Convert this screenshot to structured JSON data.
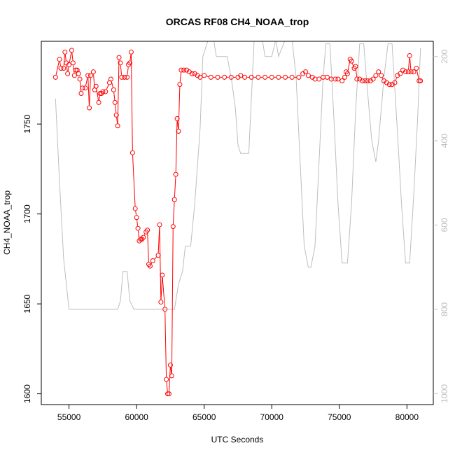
{
  "chart_data": {
    "type": "line",
    "title": "ORCAS RF08 CH4_NOAA_trop",
    "xlabel": "UTC Seconds",
    "ylabel": "CH4_NOAA_trop",
    "xlim": [
      52950,
      81950
    ],
    "ylim": [
      1594,
      1796
    ],
    "x_ticks": [
      55000,
      60000,
      65000,
      70000,
      75000,
      80000
    ],
    "y_ticks": [
      1600,
      1650,
      1700,
      1750
    ],
    "y2_ticks": [
      200,
      400,
      600,
      800,
      1000
    ],
    "y2lim": [
      1026,
      164
    ],
    "colors": {
      "ch4": "#ff0000",
      "pressure": "#bebebe",
      "frame": "#000000"
    },
    "series": [
      {
        "points": [
          [
            54000,
            1776
          ],
          [
            54300,
            1786
          ],
          [
            54400,
            1781
          ],
          [
            54600,
            1781
          ],
          [
            54700,
            1790
          ],
          [
            54800,
            1784
          ],
          [
            54900,
            1778
          ],
          [
            55000,
            1783
          ],
          [
            55200,
            1791
          ],
          [
            55300,
            1784
          ],
          [
            55400,
            1777
          ],
          [
            55500,
            1780
          ],
          [
            55600,
            1780
          ],
          [
            55700,
            1778
          ],
          [
            55800,
            1775
          ],
          [
            55900,
            1767
          ],
          [
            56000,
            1770
          ],
          [
            56200,
            1770
          ],
          [
            56400,
            1777
          ],
          [
            56500,
            1759
          ],
          [
            56600,
            1777
          ],
          [
            56800,
            1779
          ],
          [
            56900,
            1769
          ],
          [
            57000,
            1771
          ],
          [
            57200,
            1762
          ],
          [
            57300,
            1767
          ],
          [
            57400,
            1767
          ],
          [
            57500,
            1768
          ],
          [
            57700,
            1768
          ],
          [
            58000,
            1773
          ],
          [
            58100,
            1775
          ],
          [
            58300,
            1769
          ],
          [
            58400,
            1762
          ],
          [
            58500,
            1755
          ],
          [
            58600,
            1749
          ],
          [
            58700,
            1787
          ],
          [
            58800,
            1784
          ],
          [
            58900,
            1776
          ],
          [
            59100,
            1776
          ],
          [
            59300,
            1776
          ],
          [
            59400,
            1783
          ],
          [
            59500,
            1784
          ],
          [
            59600,
            1790
          ],
          [
            59700,
            1734
          ],
          [
            59900,
            1703
          ],
          [
            60000,
            1698
          ],
          [
            60100,
            1692
          ],
          [
            60200,
            1685
          ],
          [
            60300,
            1686
          ],
          [
            60400,
            1686
          ],
          [
            60500,
            1687
          ],
          [
            60700,
            1690
          ],
          [
            60800,
            1691
          ],
          [
            60900,
            1672
          ],
          [
            61000,
            1671
          ],
          [
            61200,
            1674
          ],
          [
            61600,
            1677
          ],
          [
            61700,
            1694
          ],
          [
            61800,
            1651
          ],
          [
            61900,
            1666
          ],
          [
            62100,
            1647
          ],
          [
            62200,
            1608
          ],
          [
            62300,
            1600
          ],
          [
            62400,
            1600
          ],
          [
            62500,
            1616
          ],
          [
            62600,
            1610
          ],
          [
            62700,
            1693
          ],
          [
            62800,
            1708
          ],
          [
            62900,
            1722
          ],
          [
            63000,
            1753
          ],
          [
            63100,
            1746
          ],
          [
            63200,
            1772
          ],
          [
            63300,
            1780
          ],
          [
            63500,
            1780
          ],
          [
            63700,
            1780
          ],
          [
            63900,
            1779
          ],
          [
            64100,
            1778
          ],
          [
            64300,
            1778
          ],
          [
            64500,
            1777
          ],
          [
            64700,
            1776
          ],
          [
            65000,
            1777
          ],
          [
            65500,
            1776
          ],
          [
            66000,
            1776
          ],
          [
            66500,
            1776
          ],
          [
            67000,
            1776
          ],
          [
            67500,
            1776
          ],
          [
            67700,
            1777
          ],
          [
            68000,
            1776
          ],
          [
            68500,
            1776
          ],
          [
            69000,
            1776
          ],
          [
            69500,
            1776
          ],
          [
            70000,
            1776
          ],
          [
            70500,
            1776
          ],
          [
            71000,
            1776
          ],
          [
            71500,
            1776
          ],
          [
            72000,
            1776
          ],
          [
            72300,
            1778
          ],
          [
            72500,
            1779
          ],
          [
            72700,
            1777
          ],
          [
            73000,
            1776
          ],
          [
            73200,
            1775
          ],
          [
            73500,
            1775
          ],
          [
            73800,
            1776
          ],
          [
            74100,
            1776
          ],
          [
            74400,
            1775
          ],
          [
            74700,
            1775
          ],
          [
            74900,
            1775
          ],
          [
            75200,
            1774
          ],
          [
            75400,
            1776
          ],
          [
            75500,
            1779
          ],
          [
            75600,
            1778
          ],
          [
            75800,
            1786
          ],
          [
            75900,
            1785
          ],
          [
            76100,
            1781
          ],
          [
            76200,
            1782
          ],
          [
            76300,
            1775
          ],
          [
            76500,
            1775
          ],
          [
            76700,
            1774
          ],
          [
            76900,
            1774
          ],
          [
            77100,
            1774
          ],
          [
            77300,
            1774
          ],
          [
            77500,
            1775
          ],
          [
            77700,
            1777
          ],
          [
            77900,
            1779
          ],
          [
            78100,
            1777
          ],
          [
            78300,
            1774
          ],
          [
            78500,
            1773
          ],
          [
            78700,
            1772
          ],
          [
            78900,
            1772
          ],
          [
            79100,
            1773
          ],
          [
            79300,
            1777
          ],
          [
            79500,
            1778
          ],
          [
            79700,
            1780
          ],
          [
            79900,
            1779
          ],
          [
            80100,
            1779
          ],
          [
            80200,
            1788
          ],
          [
            80300,
            1779
          ],
          [
            80500,
            1779
          ],
          [
            80700,
            1781
          ],
          [
            80900,
            1774
          ],
          [
            81000,
            1774
          ]
        ]
      },
      {
        "points": [
          [
            54000,
            300
          ],
          [
            54300,
            500
          ],
          [
            54600,
            680
          ],
          [
            55000,
            800
          ],
          [
            56000,
            800
          ],
          [
            57000,
            800
          ],
          [
            58000,
            800
          ],
          [
            58600,
            800
          ],
          [
            58800,
            780
          ],
          [
            59000,
            710
          ],
          [
            59300,
            710
          ],
          [
            59500,
            780
          ],
          [
            59800,
            800
          ],
          [
            60500,
            800
          ],
          [
            61500,
            800
          ],
          [
            62300,
            800
          ],
          [
            62800,
            800
          ],
          [
            63100,
            740
          ],
          [
            63400,
            710
          ],
          [
            63600,
            650
          ],
          [
            64000,
            650
          ],
          [
            64300,
            550
          ],
          [
            64700,
            370
          ],
          [
            64900,
            200
          ],
          [
            65300,
            160
          ],
          [
            65700,
            160
          ],
          [
            65900,
            200
          ],
          [
            66300,
            200
          ],
          [
            66700,
            200
          ],
          [
            67000,
            250
          ],
          [
            67300,
            320
          ],
          [
            67500,
            410
          ],
          [
            67700,
            430
          ],
          [
            68300,
            430
          ],
          [
            68700,
            160
          ],
          [
            68900,
            160
          ],
          [
            69300,
            160
          ],
          [
            69500,
            200
          ],
          [
            70000,
            200
          ],
          [
            70300,
            160
          ],
          [
            70500,
            200
          ],
          [
            71000,
            160
          ],
          [
            71500,
            160
          ],
          [
            71800,
            250
          ],
          [
            72100,
            450
          ],
          [
            72400,
            650
          ],
          [
            72700,
            700
          ],
          [
            72900,
            700
          ],
          [
            73200,
            650
          ],
          [
            73500,
            450
          ],
          [
            73800,
            250
          ],
          [
            74000,
            170
          ],
          [
            74300,
            170
          ],
          [
            74600,
            350
          ],
          [
            74900,
            550
          ],
          [
            75200,
            690
          ],
          [
            75600,
            690
          ],
          [
            75900,
            550
          ],
          [
            76200,
            330
          ],
          [
            76500,
            170
          ],
          [
            76800,
            170
          ],
          [
            77000,
            250
          ],
          [
            77400,
            400
          ],
          [
            77700,
            450
          ],
          [
            77900,
            400
          ],
          [
            78300,
            250
          ],
          [
            78600,
            170
          ],
          [
            78900,
            170
          ],
          [
            79300,
            380
          ],
          [
            79600,
            550
          ],
          [
            79900,
            690
          ],
          [
            80200,
            690
          ],
          [
            80500,
            530
          ],
          [
            80800,
            340
          ],
          [
            81000,
            180
          ]
        ]
      }
    ]
  }
}
